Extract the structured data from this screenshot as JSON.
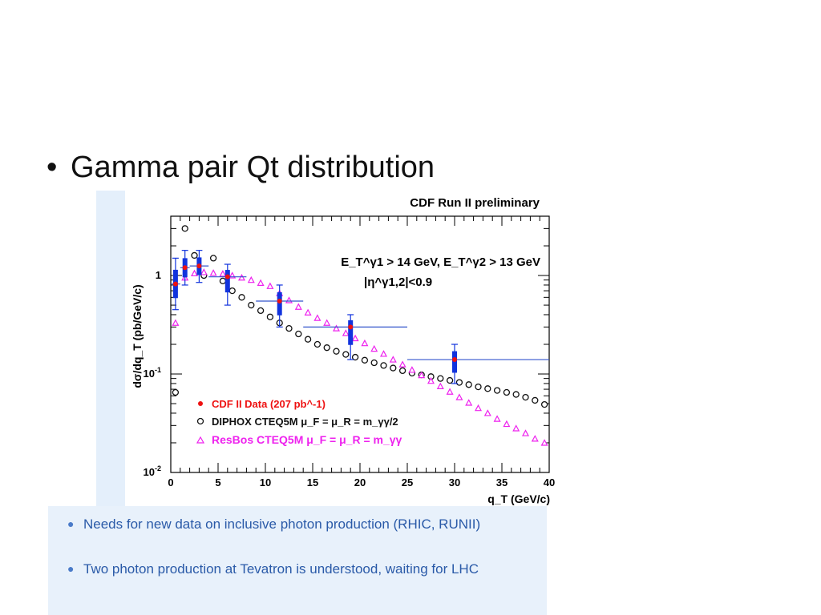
{
  "slide": {
    "bullet": "Gamma pair Qt distribution",
    "notes": [
      "Needs for new data on inclusive photon production (RHIC, RUNII)",
      "Two photon production at Tevatron is understood, waiting for LHC"
    ]
  },
  "chart_data": {
    "type": "scatter",
    "title": "CDF Run II preliminary",
    "xlabel": "q_T (GeV/c)",
    "ylabel": "dσ/dq_T (pb/GeV/c)",
    "xlim": [
      0,
      40
    ],
    "ylim": [
      0.01,
      4
    ],
    "log_y": true,
    "x_ticks": [
      "0",
      "5",
      "10",
      "15",
      "20",
      "25",
      "30",
      "35",
      "40"
    ],
    "y_ticks": [
      {
        "value": 1,
        "label": "1"
      },
      {
        "value": 0.1,
        "label": "10^-1"
      },
      {
        "value": 0.01,
        "label": "10^-2"
      }
    ],
    "cuts": [
      "E_T^γ1 > 14 GeV, E_T^γ2 > 13 GeV",
      "|η^γ1,2|<0.9"
    ],
    "legend_position": "bottom-left",
    "colors": {
      "data": "#ee1111",
      "data_err": "#1133dd",
      "data_bin": "#3355cc",
      "diphox": "#111111",
      "resbos": "#ee22ee"
    },
    "series": [
      {
        "name": "CDF II Data (207 pb^-1)",
        "marker": "filled-circle",
        "points": [
          {
            "x": 0.5,
            "xlo": 0,
            "xhi": 1,
            "y": 0.82,
            "ylo": 0.45,
            "yhi": 1.5
          },
          {
            "x": 1.5,
            "xlo": 1,
            "xhi": 2,
            "y": 1.2,
            "ylo": 0.8,
            "yhi": 1.8
          },
          {
            "x": 3,
            "xlo": 2,
            "xhi": 4,
            "y": 1.25,
            "ylo": 0.85,
            "yhi": 1.8
          },
          {
            "x": 6,
            "xlo": 4,
            "xhi": 8,
            "y": 0.97,
            "ylo": 0.5,
            "yhi": 1.3
          },
          {
            "x": 11.5,
            "xlo": 9,
            "xhi": 14,
            "y": 0.55,
            "ylo": 0.3,
            "yhi": 0.8
          },
          {
            "x": 19,
            "xlo": 14,
            "xhi": 25,
            "y": 0.3,
            "ylo": 0.14,
            "yhi": 0.4
          },
          {
            "x": 30,
            "xlo": 25,
            "xhi": 40,
            "y": 0.14,
            "ylo": 0.08,
            "yhi": 0.2
          }
        ]
      },
      {
        "name": "DIPHOX CTEQ5M  μ_F = μ_R = m_γγ/2",
        "marker": "open-circle",
        "x": [
          0.5,
          1.5,
          2.5,
          3.5,
          4.5,
          5.5,
          6.5,
          7.5,
          8.5,
          9.5,
          10.5,
          11.5,
          12.5,
          13.5,
          14.5,
          15.5,
          16.5,
          17.5,
          18.5,
          19.5,
          20.5,
          21.5,
          22.5,
          23.5,
          24.5,
          25.5,
          26.5,
          27.5,
          28.5,
          29.5,
          30.5,
          31.5,
          32.5,
          33.5,
          34.5,
          35.5,
          36.5,
          37.5,
          38.5,
          39.5
        ],
        "values": [
          0.065,
          3.0,
          1.6,
          1.0,
          1.5,
          0.88,
          0.7,
          0.6,
          0.5,
          0.44,
          0.38,
          0.33,
          0.29,
          0.255,
          0.225,
          0.2,
          0.185,
          0.17,
          0.158,
          0.148,
          0.138,
          0.13,
          0.122,
          0.115,
          0.108,
          0.102,
          0.098,
          0.094,
          0.09,
          0.086,
          0.082,
          0.078,
          0.074,
          0.071,
          0.068,
          0.065,
          0.062,
          0.058,
          0.054,
          0.049
        ]
      },
      {
        "name": "ResBos CTEQ5M μ_F = μ_R = m_γγ",
        "marker": "open-triangle",
        "x": [
          0.5,
          1.5,
          2.5,
          3.5,
          4.5,
          5.5,
          6.5,
          7.5,
          8.5,
          9.5,
          10.5,
          11.5,
          12.5,
          13.5,
          14.5,
          15.5,
          16.5,
          17.5,
          18.5,
          19.5,
          20.5,
          21.5,
          22.5,
          23.5,
          24.5,
          25.5,
          26.5,
          27.5,
          28.5,
          29.5,
          30.5,
          31.5,
          32.5,
          33.5,
          34.5,
          35.5,
          36.5,
          37.5,
          38.5,
          39.5
        ],
        "values": [
          0.33,
          0.95,
          1.05,
          1.08,
          1.06,
          1.04,
          1.0,
          0.95,
          0.9,
          0.84,
          0.78,
          0.66,
          0.56,
          0.48,
          0.42,
          0.37,
          0.33,
          0.29,
          0.26,
          0.23,
          0.205,
          0.18,
          0.16,
          0.14,
          0.125,
          0.11,
          0.097,
          0.085,
          0.075,
          0.066,
          0.058,
          0.051,
          0.045,
          0.04,
          0.035,
          0.031,
          0.028,
          0.025,
          0.022,
          0.02
        ]
      }
    ]
  }
}
